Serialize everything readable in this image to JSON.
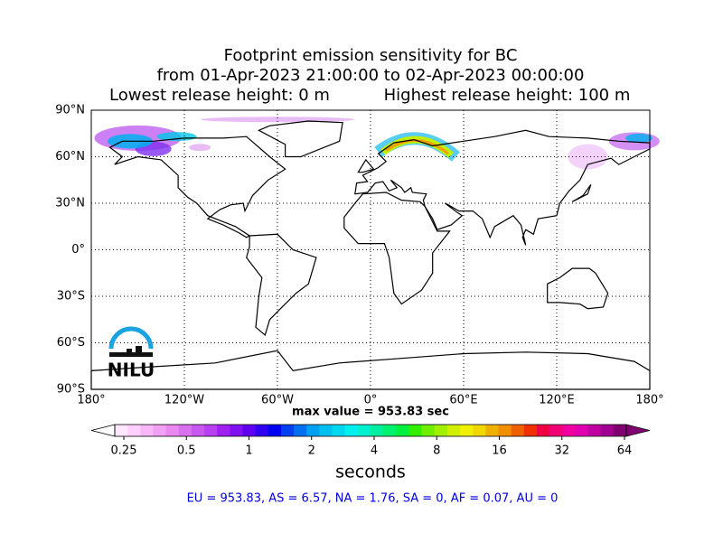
{
  "map": {
    "title_lines": [
      "Footprint emission sensitivity for BC",
      "from 01-Apr-2023 21:00:00 to 02-Apr-2023 00:00:00"
    ],
    "release_low": "Lowest release height: 0 m",
    "release_high": "Highest release height: 100 m",
    "xlim": [
      -180,
      180
    ],
    "ylim": [
      -90,
      90
    ],
    "xticks": [
      {
        "value": -180,
        "label": "180°"
      },
      {
        "value": -120,
        "label": "120°W"
      },
      {
        "value": -60,
        "label": "60°W"
      },
      {
        "value": 0,
        "label": "0°"
      },
      {
        "value": 60,
        "label": "60°E"
      },
      {
        "value": 120,
        "label": "120°E"
      },
      {
        "value": 180,
        "label": "180°"
      }
    ],
    "yticks": [
      {
        "value": 90,
        "label": "90°N"
      },
      {
        "value": 60,
        "label": "60°N"
      },
      {
        "value": 30,
        "label": "30°N"
      },
      {
        "value": 0,
        "label": "0°"
      },
      {
        "value": -30,
        "label": "30°S"
      },
      {
        "value": -60,
        "label": "60°S"
      },
      {
        "value": -90,
        "label": "90°S"
      }
    ],
    "grid": true,
    "max_label": "max value = 953.83 sec",
    "logo": "NILU"
  },
  "colorbar": {
    "lim": [
      0.25,
      64
    ],
    "log_scale": true,
    "ticks": [
      0.25,
      0.5,
      1,
      2,
      4,
      8,
      16,
      32,
      64
    ],
    "label": "seconds",
    "colors": [
      "#ffe8ff",
      "#ffd0ff",
      "#f8b8f8",
      "#f0a0f0",
      "#e888f0",
      "#d870f0",
      "#c858f0",
      "#b840f0",
      "#a020f0",
      "#8010f0",
      "#6000f0",
      "#3000f0",
      "#0000f0",
      "#0040f0",
      "#0070f0",
      "#00a0f0",
      "#00c0f0",
      "#00d8f0",
      "#00f0f0",
      "#00f0d0",
      "#00f0a0",
      "#00f070",
      "#00f040",
      "#30f000",
      "#70f000",
      "#a0f000",
      "#d0f000",
      "#f0f000",
      "#f0d800",
      "#f0b000",
      "#f09000",
      "#f06000",
      "#f03000",
      "#f00040",
      "#f00070",
      "#f000a0",
      "#e000b0",
      "#c000a0",
      "#a00090",
      "#800070"
    ]
  },
  "regional_totals": "EU = 953.83,  AS = 6.57,  NA = 1.76,  SA = 0,  AF = 0.07,  AU = 0"
}
